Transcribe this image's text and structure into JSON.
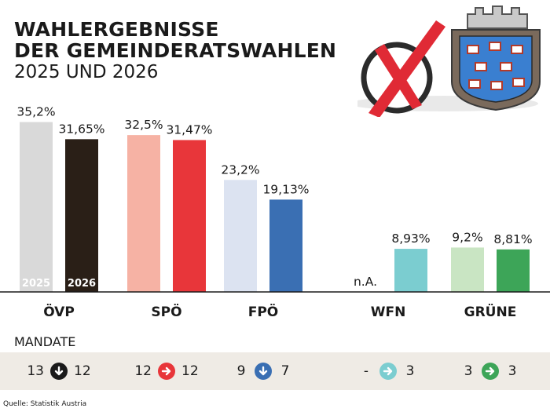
{
  "header": {
    "title_line1": "WAHLERGEBNISSE",
    "title_line2": "DER GEMEINDERATSWAHLEN",
    "subtitle": "2025 UND 2026"
  },
  "chart_data": {
    "type": "bar",
    "title": "WAHLERGEBNISSE DER GEMEINDERATSWAHLEN",
    "subtitle": "2025 UND 2026",
    "categories": [
      "ÖVP",
      "SPÖ",
      "FPÖ",
      "WFN",
      "GRÜNE"
    ],
    "series": [
      {
        "name": "2025",
        "values": [
          35.2,
          32.5,
          23.2,
          null,
          9.2
        ],
        "labels": [
          "35,2%",
          "32,5%",
          "23,2%",
          "n.A.",
          "9,2%"
        ],
        "colors": [
          "#d9d9d9",
          "#f6b2a4",
          "#dce3f1",
          null,
          "#c9e5c3"
        ]
      },
      {
        "name": "2026",
        "values": [
          31.65,
          31.47,
          19.13,
          8.93,
          8.81
        ],
        "labels": [
          "31,65%",
          "31,47%",
          "19,13%",
          "8,93%",
          "8,81%"
        ],
        "colors": [
          "#2a1f17",
          "#e8363a",
          "#3a6fb3",
          "#7bcdd0",
          "#3da558"
        ]
      }
    ],
    "ylim": [
      0,
      40
    ],
    "grid": false,
    "legend": "none"
  },
  "mandate": {
    "title": "MANDATE",
    "rows": [
      {
        "party": "ÖVP",
        "from": "13",
        "to": "12",
        "direction": "down",
        "color": "#1a1a1a"
      },
      {
        "party": "SPÖ",
        "from": "12",
        "to": "12",
        "direction": "right",
        "color": "#e8363a"
      },
      {
        "party": "FPÖ",
        "from": "9",
        "to": "7",
        "direction": "down",
        "color": "#3a6fb3"
      },
      {
        "party": "WFN",
        "from": "-",
        "to": "3",
        "direction": "right",
        "color": "#7bcdd0"
      },
      {
        "party": "GRÜNE",
        "from": "3",
        "to": "3",
        "direction": "right",
        "color": "#3da558"
      }
    ]
  },
  "source": "Quelle: Statistik Austria",
  "colors": {
    "text": "#1a1a1a",
    "axis": "#1a1a1a",
    "band": "#efebe5"
  }
}
